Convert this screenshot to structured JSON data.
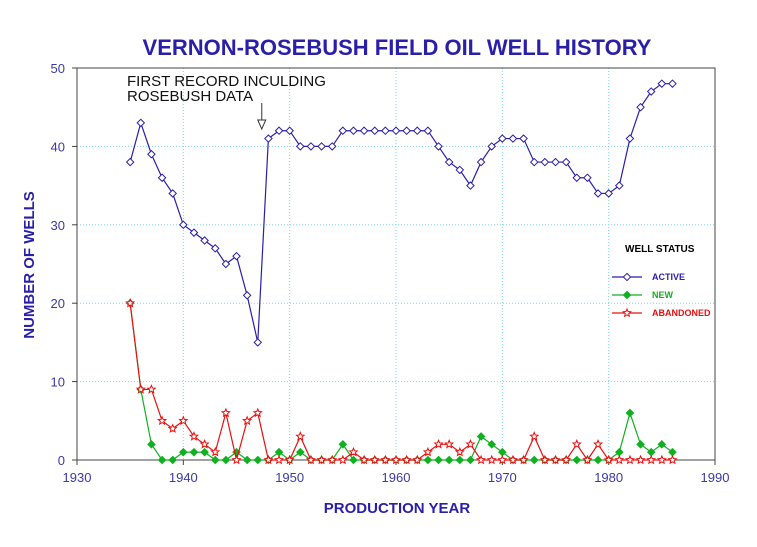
{
  "chart_data": {
    "type": "line",
    "title": "VERNON-ROSEBUSH FIELD OIL WELL HISTORY",
    "xlabel": "PRODUCTION YEAR",
    "ylabel": "NUMBER OF WELLS",
    "xlim": [
      1930,
      1990
    ],
    "ylim": [
      0,
      50
    ],
    "xticks": [
      1930,
      1940,
      1950,
      1960,
      1970,
      1980,
      1990
    ],
    "yticks": [
      0,
      10,
      20,
      30,
      40,
      50
    ],
    "grid": true,
    "legend_title": "WELL STATUS",
    "legend_position": "right",
    "annotation": {
      "lines": [
        "FIRST RECORD INCULDING",
        "ROSEBUSH DATA"
      ],
      "x": 1947
    },
    "x": [
      1935,
      1936,
      1937,
      1938,
      1939,
      1940,
      1941,
      1942,
      1943,
      1944,
      1945,
      1946,
      1947,
      1948,
      1949,
      1950,
      1951,
      1952,
      1953,
      1954,
      1955,
      1956,
      1957,
      1958,
      1959,
      1960,
      1961,
      1962,
      1963,
      1964,
      1965,
      1966,
      1967,
      1968,
      1969,
      1970,
      1971,
      1972,
      1973,
      1974,
      1975,
      1976,
      1977,
      1978,
      1979,
      1980,
      1981,
      1982,
      1983,
      1984,
      1985,
      1986
    ],
    "series": [
      {
        "name": "ACTIVE",
        "color": "#2a1fa8",
        "marker": "diamond-open",
        "values": [
          38,
          43,
          39,
          36,
          34,
          30,
          29,
          28,
          27,
          25,
          26,
          21,
          15,
          41,
          42,
          42,
          40,
          40,
          40,
          40,
          42,
          42,
          42,
          42,
          42,
          42,
          42,
          42,
          42,
          40,
          38,
          37,
          35,
          38,
          40,
          41,
          41,
          41,
          38,
          38,
          38,
          38,
          36,
          36,
          34,
          34,
          35,
          41,
          45,
          47,
          48,
          48
        ]
      },
      {
        "name": "NEW",
        "color": "#10b020",
        "marker": "diamond-filled",
        "values": [
          20,
          9,
          2,
          0,
          0,
          1,
          1,
          1,
          0,
          0,
          1,
          0,
          0,
          0,
          1,
          0,
          1,
          0,
          0,
          0,
          2,
          0,
          0,
          0,
          0,
          0,
          0,
          0,
          0,
          0,
          0,
          0,
          0,
          3,
          2,
          1,
          0,
          0,
          0,
          0,
          0,
          0,
          0,
          0,
          0,
          0,
          1,
          6,
          2,
          1,
          2,
          1
        ]
      },
      {
        "name": "ABANDONED",
        "color": "#e81010",
        "marker": "star-open",
        "values": [
          20,
          9,
          9,
          5,
          4,
          5,
          3,
          2,
          1,
          6,
          0,
          5,
          6,
          0,
          0,
          0,
          3,
          0,
          0,
          0,
          0,
          1,
          0,
          0,
          0,
          0,
          0,
          0,
          1,
          2,
          2,
          1,
          2,
          0,
          0,
          0,
          0,
          0,
          3,
          0,
          0,
          0,
          2,
          0,
          2,
          0,
          0,
          0,
          0,
          0,
          0,
          0
        ]
      }
    ]
  }
}
